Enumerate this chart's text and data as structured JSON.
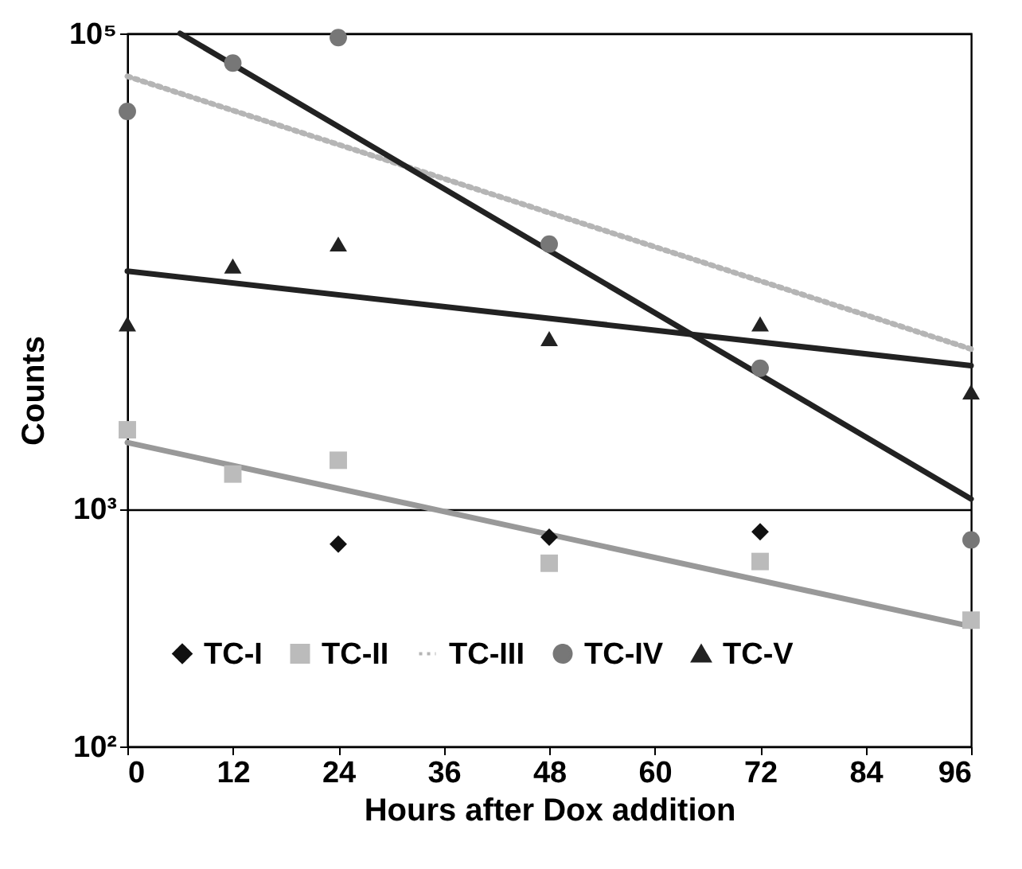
{
  "chart_data": {
    "type": "scatter",
    "xlabel": "Hours after Dox addition",
    "ylabel": "Counts",
    "log": "y",
    "xlim": [
      0,
      96
    ],
    "xticks": [
      0,
      12,
      24,
      36,
      48,
      60,
      72,
      84,
      96
    ],
    "ylim": [
      100,
      100000
    ],
    "yticks": [
      {
        "value": 100,
        "label": "10²"
      },
      {
        "value": 1000,
        "label": "10³"
      },
      {
        "value": 100000,
        "label": "10⁵"
      }
    ],
    "grid": "y",
    "legend": "bottom",
    "series": [
      {
        "name": "TC-I",
        "marker": "diamond",
        "color": "#111111",
        "x": [
          24,
          48,
          72
        ],
        "values": [
          710,
          760,
          800
        ]
      },
      {
        "name": "TC-II",
        "marker": "square",
        "color": "#bbbbbb",
        "x": [
          0,
          12,
          24,
          48,
          72,
          96
        ],
        "values": [
          2150,
          1400,
          1600,
          590,
          600,
          340
        ]
      },
      {
        "name": "TC-III",
        "type": "line",
        "line_style": "dotted",
        "color": "#b5b5b5",
        "x": [
          0,
          96
        ],
        "values": [
          66000,
          4700
        ]
      },
      {
        "name": "TC-IV",
        "marker": "circle",
        "color": "#777777",
        "x": [
          0,
          12,
          24,
          48,
          72,
          96
        ],
        "values": [
          47000,
          75000,
          96000,
          13000,
          3900,
          740
        ]
      },
      {
        "name": "TC-V",
        "marker": "triangle",
        "color": "#222222",
        "x": [
          0,
          12,
          24,
          48,
          72,
          96
        ],
        "values": [
          6000,
          10500,
          13000,
          5200,
          6000,
          3100
        ]
      },
      {
        "type": "line",
        "line_style": "solid",
        "color": "#999999",
        "x": [
          0,
          96
        ],
        "values": [
          1900,
          320
        ]
      },
      {
        "type": "line",
        "line_style": "solid",
        "color": "#222222",
        "x": [
          6,
          96
        ],
        "values": [
          100000,
          1100
        ]
      },
      {
        "type": "line",
        "line_style": "solid",
        "color": "#222222",
        "x": [
          0,
          96
        ],
        "values": [
          10000,
          4000
        ]
      }
    ]
  }
}
